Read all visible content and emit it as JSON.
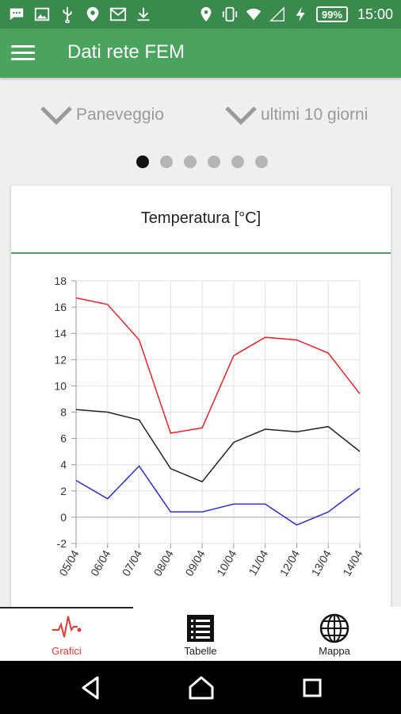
{
  "status_bar": {
    "battery": "99%",
    "time": "15:00",
    "icons": [
      "chat-icon",
      "image-icon",
      "usb-icon",
      "location-pin-icon",
      "mail-icon",
      "download-icon",
      "location-icon",
      "vibrate-icon",
      "wifi-icon",
      "signal-icon",
      "charging-icon"
    ]
  },
  "app_bar": {
    "title": "Dati rete FEM"
  },
  "selectors": {
    "station": "Paneveggio",
    "period": "ultimi 10 giorni"
  },
  "pager": {
    "count": 6,
    "active": 0
  },
  "chart_card": {
    "title": "Temperatura [°C]"
  },
  "chart_data": {
    "type": "line",
    "title": "Temperatura [°C]",
    "categories": [
      "05/04",
      "06/04",
      "07/04",
      "08/04",
      "09/04",
      "10/04",
      "11/04",
      "12/04",
      "13/04",
      "14/04"
    ],
    "series": [
      {
        "color": "#e8242a",
        "values": [
          16.7,
          16.2,
          13.5,
          6.4,
          6.8,
          12.3,
          13.7,
          13.5,
          12.5,
          9.4
        ]
      },
      {
        "color": "#222222",
        "values": [
          8.2,
          8.0,
          7.4,
          3.7,
          2.7,
          5.7,
          6.7,
          6.5,
          6.9,
          5.0
        ]
      },
      {
        "color": "#2b2bd9",
        "values": [
          2.8,
          1.4,
          3.9,
          0.4,
          0.4,
          1.0,
          1.0,
          -0.6,
          0.4,
          2.2
        ]
      }
    ],
    "yticks": [
      18,
      16,
      14,
      12,
      10,
      8,
      6,
      4,
      2,
      0,
      -2
    ],
    "ylim": [
      -2,
      18
    ],
    "grid": true
  },
  "bottom_nav": [
    {
      "label": "Grafici",
      "icon": "heartbeat-icon",
      "active": true
    },
    {
      "label": "Tabelle",
      "icon": "list-icon",
      "active": false
    },
    {
      "label": "Mappa",
      "icon": "globe-icon",
      "active": false
    }
  ],
  "colors": {
    "primary": "#4aa45e",
    "status_bar": "#3a8a4e",
    "accent": "#e53935"
  }
}
